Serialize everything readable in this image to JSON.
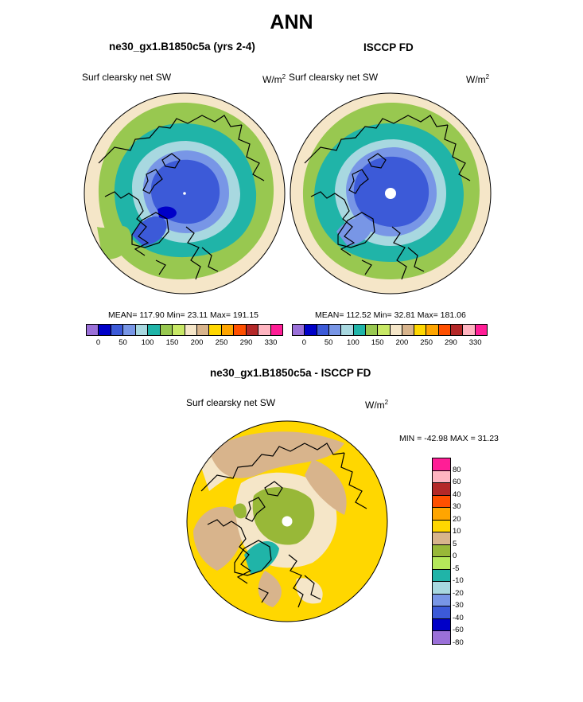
{
  "title": "ANN",
  "panels": [
    {
      "subtitle": "ne30_gx1.B1850c5a (yrs 2-4)",
      "variable": "Surf clearsky net SW",
      "units": "W/m",
      "units_sup": "2",
      "stats": "MEAN= 117.90  Min=  23.11  Max= 191.15"
    },
    {
      "subtitle": "ISCCP FD",
      "variable": "Surf clearsky net SW",
      "units": "W/m",
      "units_sup": "2",
      "stats": "MEAN= 112.52  Min=  32.81  Max= 181.06"
    }
  ],
  "colorbar_top": {
    "colors": [
      "#9a70d8",
      "#0000c8",
      "#3c5ad8",
      "#7896e6",
      "#a8d8e0",
      "#20b4a8",
      "#98c850",
      "#c8e866",
      "#f5e6c8",
      "#d8b48c",
      "#ffd700",
      "#ffa500",
      "#ff5000",
      "#b42828",
      "#ffb4c0",
      "#ff1e96"
    ],
    "ticks": [
      "0",
      "50",
      "100",
      "150",
      "200",
      "250",
      "290",
      "330"
    ]
  },
  "diff": {
    "subtitle": "ne30_gx1.B1850c5a - ISCCP FD",
    "variable": "Surf clearsky net SW",
    "units": "W/m",
    "units_sup": "2",
    "minmax": "MIN = -42.98 MAX =  31.23",
    "colorbar": {
      "colors": [
        "#ff1e96",
        "#ffb4c0",
        "#b42828",
        "#ff5000",
        "#ffa500",
        "#ffd700",
        "#d8b48c",
        "#98b838",
        "#b4e85a",
        "#20b4a8",
        "#a8d8e0",
        "#7896e6",
        "#3c5ad8",
        "#0000c8",
        "#9a70d8"
      ],
      "ticks": [
        "80",
        "60",
        "40",
        "30",
        "20",
        "10",
        "5",
        "0",
        "-5",
        "-10",
        "-20",
        "-30",
        "-40",
        "-60",
        "-80"
      ]
    }
  },
  "map_colors": {
    "outer": "#f5e6c8",
    "ring1": "#98c850",
    "ring2": "#20b4a8",
    "ring3": "#a8d8e0",
    "ring4": "#7896e6",
    "core": "#3c5ad8",
    "deep": "#0000c8",
    "diff_bg": "#ffd700",
    "diff_tan": "#d8b48c",
    "diff_cream": "#f5e6c8",
    "diff_green": "#98b838",
    "diff_teal": "#20b4a8",
    "land_line": "#000000"
  }
}
